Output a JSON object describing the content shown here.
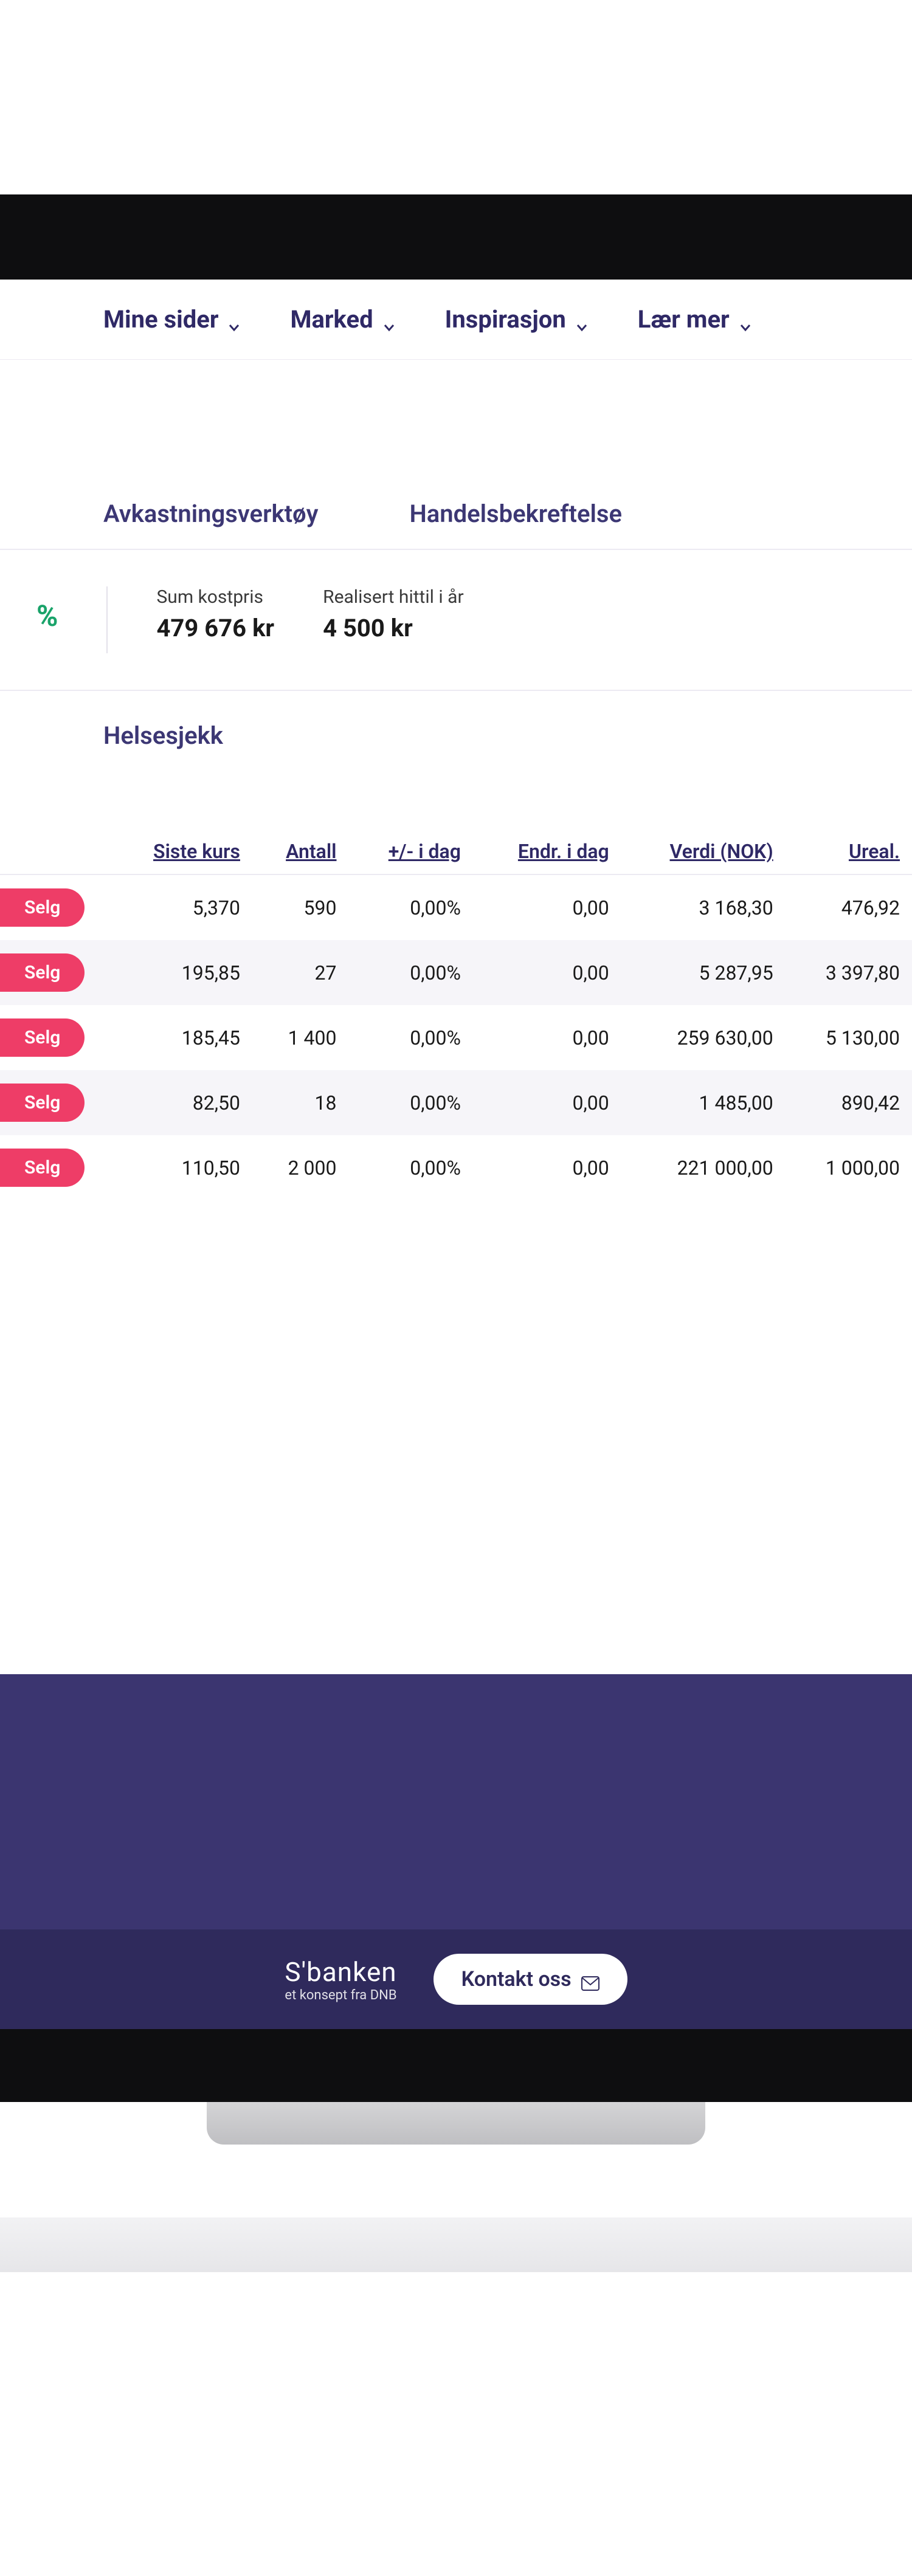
{
  "nav": {
    "items": [
      {
        "label": "Mine sider"
      },
      {
        "label": "Marked"
      },
      {
        "label": "Inspirasjon"
      },
      {
        "label": "Lær mer"
      }
    ]
  },
  "tabs": {
    "avkastning": "Avkastningsverktøy",
    "handel": "Handelsbekreftelse"
  },
  "summary": {
    "pct_suffix": "%",
    "kostpris_label": "Sum kostpris",
    "kostpris_value": "479 676 kr",
    "realisert_label": "Realisert hittil i år",
    "realisert_value": "4 500 kr"
  },
  "helse": {
    "label": "Helsesjekk"
  },
  "table": {
    "headers": {
      "kurs": "Siste kurs",
      "antall": "Antall",
      "pm_idag": "+/- i dag",
      "endr_idag": "Endr. i dag",
      "verdi": "Verdi (NOK)",
      "ureal": "Ureal."
    },
    "selg_label": "Selg",
    "rows": [
      {
        "kurs": "5,370",
        "antall": "590",
        "pm": "0,00%",
        "endr": "0,00",
        "verdi": "3 168,30",
        "ureal": "476,92"
      },
      {
        "kurs": "195,85",
        "antall": "27",
        "pm": "0,00%",
        "endr": "0,00",
        "verdi": "5 287,95",
        "ureal": "3 397,80"
      },
      {
        "kurs": "185,45",
        "antall": "1 400",
        "pm": "0,00%",
        "endr": "0,00",
        "verdi": "259 630,00",
        "ureal": "5 130,00"
      },
      {
        "kurs": "82,50",
        "antall": "18",
        "pm": "0,00%",
        "endr": "0,00",
        "verdi": "1 485,00",
        "ureal": "890,42"
      },
      {
        "kurs": "110,50",
        "antall": "2 000",
        "pm": "0,00%",
        "endr": "0,00",
        "verdi": "221 000,00",
        "ureal": "1 000,00"
      }
    ]
  },
  "footer": {
    "brand_main": "S'banken",
    "brand_sub": "et konsept fra DNB",
    "contact": "Kontakt oss"
  },
  "colors": {
    "nav_text": "#2f2966",
    "accent_green": "#1aa36a",
    "selg_red": "#ee3d67",
    "footer_purple": "#3b3570",
    "footer_bottom": "#2f2a5c",
    "row_alt": "#f6f5f9",
    "border": "#eceaf2"
  }
}
